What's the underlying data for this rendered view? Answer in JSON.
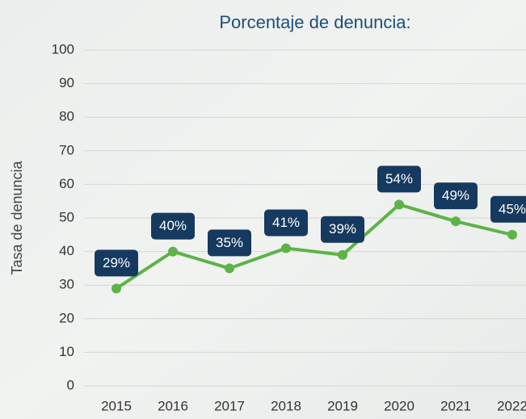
{
  "chart_data": {
    "type": "line",
    "title": "Porcentaje de denuncia:",
    "y_label": "Tasa de denuncia",
    "categories": [
      "2015",
      "2016",
      "2017",
      "2018",
      "2019",
      "2020",
      "2021",
      "2022"
    ],
    "series": [
      {
        "name": "Tasa de denuncia",
        "color": "#5db347",
        "values": [
          29,
          40,
          35,
          41,
          39,
          54,
          49,
          45
        ],
        "value_labels": [
          "29%",
          "40%",
          "35%",
          "41%",
          "39%",
          "54%",
          "49%",
          "45%"
        ]
      }
    ],
    "ylim": [
      0,
      100
    ],
    "yticks": [
      0,
      10,
      20,
      30,
      40,
      50,
      60,
      70,
      80,
      90,
      100
    ],
    "grid": true
  }
}
